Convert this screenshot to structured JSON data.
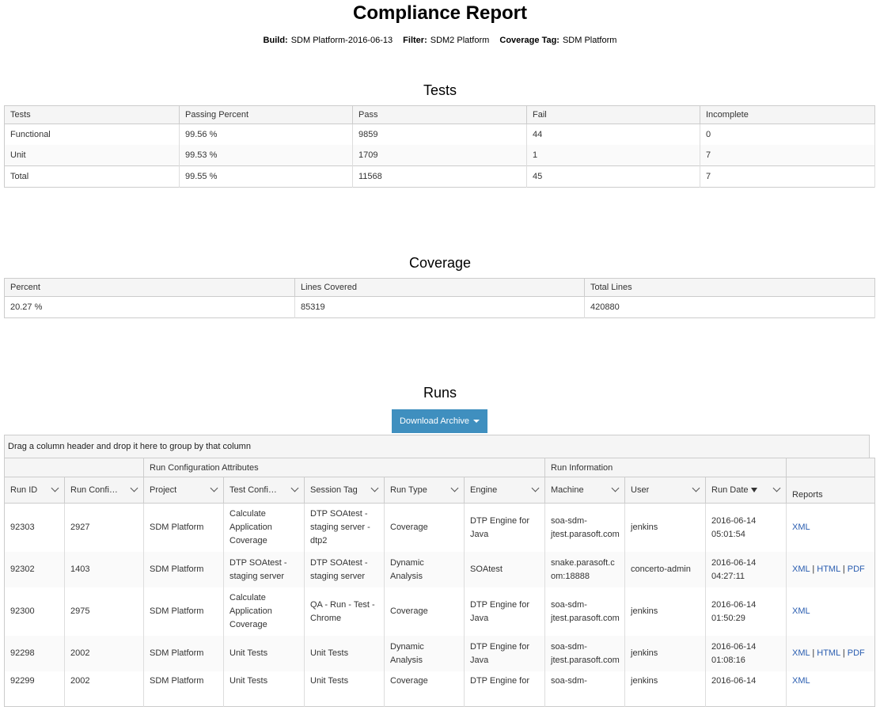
{
  "report": {
    "title": "Compliance Report",
    "build_label": "Build:",
    "build_value": "SDM Platform-2016-06-13",
    "filter_label": "Filter:",
    "filter_value": "SDM2 Platform",
    "coverage_tag_label": "Coverage Tag:",
    "coverage_tag_value": "SDM Platform"
  },
  "tests": {
    "heading": "Tests",
    "columns": [
      "Tests",
      "Passing Percent",
      "Pass",
      "Fail",
      "Incomplete"
    ],
    "rows": [
      [
        "Functional",
        "99.56 %",
        "9859",
        "44",
        "0"
      ],
      [
        "Unit",
        "99.53 %",
        "1709",
        "1",
        "7"
      ],
      [
        "Total",
        "99.55 %",
        "11568",
        "45",
        "7"
      ]
    ]
  },
  "coverage": {
    "heading": "Coverage",
    "columns": [
      "Percent",
      "Lines Covered",
      "Total Lines"
    ],
    "rows": [
      [
        "20.27 %",
        "85319",
        "420880"
      ]
    ]
  },
  "runs": {
    "heading": "Runs",
    "download_label": "Download Archive",
    "group_hint": "Drag a column header and drop it here to group by that column",
    "group_headers": [
      "Run Configuration Attributes",
      "Run Information"
    ],
    "columns": [
      "Run ID",
      "Run Confi…",
      "Project",
      "Test Confi…",
      "Session Tag",
      "Run Type",
      "Engine",
      "Machine",
      "User",
      "Run Date",
      "Reports"
    ],
    "rows": [
      {
        "id": "92303",
        "config": "2927",
        "project": "SDM Platform",
        "test_config": "Calculate Application Coverage",
        "session_tag": "DTP SOAtest - staging server - dtp2",
        "run_type": "Coverage",
        "engine": "DTP Engine for Java",
        "machine": "soa-sdm-jtest.parasoft.com",
        "user": "jenkins",
        "run_date": "2016-06-14 05:01:54",
        "reports": [
          "XML"
        ]
      },
      {
        "id": "92302",
        "config": "1403",
        "project": "SDM Platform",
        "test_config": "DTP SOAtest - staging server",
        "session_tag": "DTP SOAtest - staging server",
        "run_type": "Dynamic Analysis",
        "engine": "SOAtest",
        "machine": "snake.parasoft.com:18888",
        "user": "concerto-admin",
        "run_date": "2016-06-14 04:27:11",
        "reports": [
          "XML",
          "HTML",
          "PDF"
        ]
      },
      {
        "id": "92300",
        "config": "2975",
        "project": "SDM Platform",
        "test_config": "Calculate Application Coverage",
        "session_tag": "QA - Run - Test - Chrome",
        "run_type": "Coverage",
        "engine": "DTP Engine for Java",
        "machine": "soa-sdm-jtest.parasoft.com",
        "user": "jenkins",
        "run_date": "2016-06-14 01:50:29",
        "reports": [
          "XML"
        ]
      },
      {
        "id": "92298",
        "config": "2002",
        "project": "SDM Platform",
        "test_config": "Unit Tests",
        "session_tag": "Unit Tests",
        "run_type": "Dynamic Analysis",
        "engine": "DTP Engine for Java",
        "machine": "soa-sdm-jtest.parasoft.com",
        "user": "jenkins",
        "run_date": "2016-06-14 01:08:16",
        "reports": [
          "XML",
          "HTML",
          "PDF"
        ]
      },
      {
        "id": "92299",
        "config": "2002",
        "project": "SDM Platform",
        "test_config": "Unit Tests",
        "session_tag": "Unit Tests",
        "run_type": "Coverage",
        "engine": "DTP Engine for",
        "machine": "soa-sdm-",
        "user": "jenkins",
        "run_date": "2016-06-14",
        "reports": [
          "XML"
        ]
      }
    ]
  },
  "colors": {
    "accent": "#3f8fbf",
    "link": "#2a5db0",
    "header_bg": "#f5f5f5",
    "border": "#cccccc"
  }
}
